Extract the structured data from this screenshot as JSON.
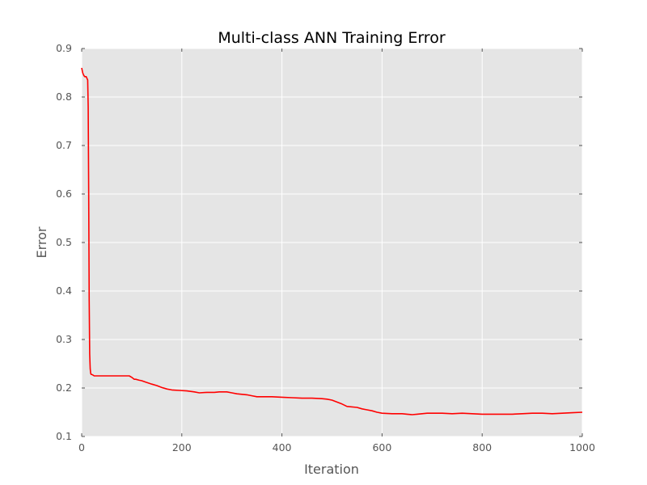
{
  "chart_data": {
    "type": "line",
    "title": "Multi-class ANN Training Error",
    "xlabel": "Iteration",
    "ylabel": "Error",
    "xlim": [
      0,
      1000
    ],
    "ylim": [
      0.1,
      0.9
    ],
    "xticks": [
      "0",
      "200",
      "400",
      "600",
      "800",
      "1000"
    ],
    "yticks": [
      "0.1",
      "0.2",
      "0.3",
      "0.4",
      "0.5",
      "0.6",
      "0.7",
      "0.8",
      "0.9"
    ],
    "grid": true,
    "legend": "none",
    "series": [
      {
        "color": "#ff0000",
        "x": [
          0,
          2,
          4,
          6,
          9,
          12,
          13,
          14,
          15,
          16,
          17,
          18,
          19,
          20,
          22,
          25,
          30,
          40,
          60,
          80,
          95,
          100,
          105,
          108,
          115,
          120,
          128,
          140,
          150,
          160,
          170,
          180,
          195,
          210,
          225,
          235,
          250,
          265,
          275,
          290,
          300,
          310,
          320,
          330,
          340,
          350,
          380,
          400,
          420,
          440,
          460,
          480,
          490,
          500,
          510,
          520,
          530,
          550,
          560,
          570,
          580,
          590,
          600,
          620,
          640,
          650,
          660,
          670,
          690,
          700,
          720,
          740,
          760,
          780,
          800,
          820,
          840,
          860,
          880,
          900,
          920,
          940,
          960,
          980,
          1000
        ],
        "y": [
          0.86,
          0.85,
          0.845,
          0.842,
          0.842,
          0.835,
          0.78,
          0.6,
          0.38,
          0.27,
          0.24,
          0.23,
          0.228,
          0.228,
          0.227,
          0.225,
          0.225,
          0.225,
          0.225,
          0.225,
          0.225,
          0.222,
          0.218,
          0.218,
          0.216,
          0.215,
          0.212,
          0.208,
          0.205,
          0.201,
          0.198,
          0.196,
          0.195,
          0.194,
          0.192,
          0.19,
          0.191,
          0.191,
          0.192,
          0.192,
          0.19,
          0.188,
          0.187,
          0.186,
          0.184,
          0.182,
          0.182,
          0.181,
          0.18,
          0.179,
          0.179,
          0.178,
          0.177,
          0.175,
          0.171,
          0.167,
          0.162,
          0.16,
          0.157,
          0.155,
          0.153,
          0.15,
          0.148,
          0.147,
          0.147,
          0.146,
          0.145,
          0.146,
          0.148,
          0.148,
          0.148,
          0.147,
          0.148,
          0.147,
          0.146,
          0.146,
          0.146,
          0.146,
          0.147,
          0.148,
          0.148,
          0.147,
          0.148,
          0.149,
          0.15
        ]
      }
    ]
  }
}
